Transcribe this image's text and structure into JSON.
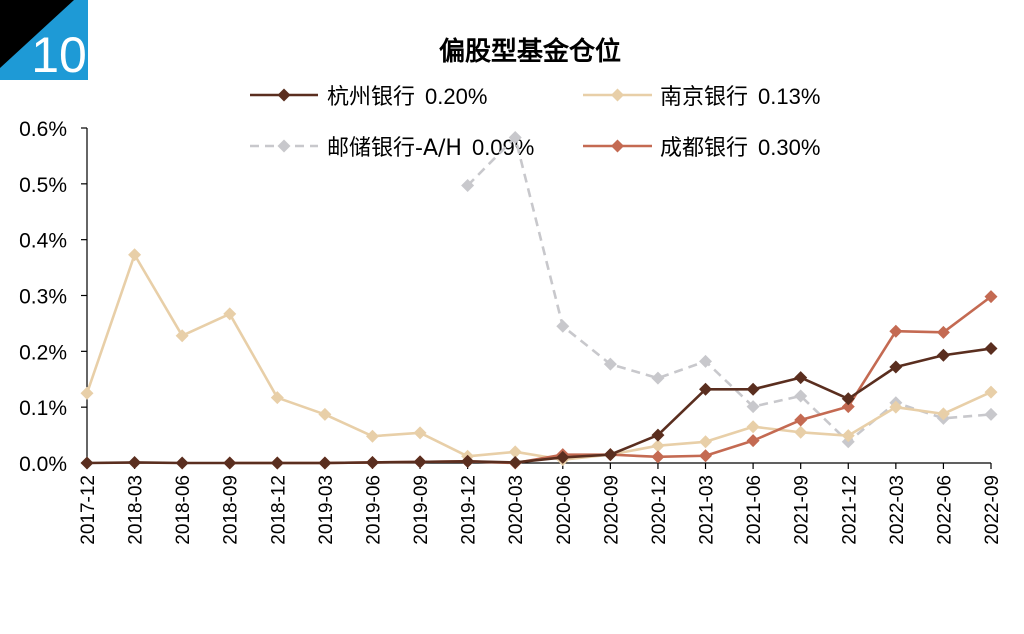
{
  "badge": {
    "number": "10"
  },
  "chart_data": {
    "type": "line",
    "title": "偏股型基金仓位",
    "xlabel": "",
    "ylabel": "",
    "categories": [
      "2017-12",
      "2018-03",
      "2018-06",
      "2018-09",
      "2018-12",
      "2019-03",
      "2019-06",
      "2019-09",
      "2019-12",
      "2020-03",
      "2020-06",
      "2020-09",
      "2020-12",
      "2021-03",
      "2021-06",
      "2021-09",
      "2021-12",
      "2022-03",
      "2022-06",
      "2022-09"
    ],
    "y_ticks": [
      "0.0%",
      "0.1%",
      "0.2%",
      "0.3%",
      "0.4%",
      "0.5%",
      "0.6%"
    ],
    "ylim": [
      0,
      0.6
    ],
    "grid": false,
    "legend_position": "top",
    "series": [
      {
        "name": "杭州银行",
        "legend_value": "0.20%",
        "color": "#5a2e1f",
        "dash": false,
        "values": [
          0.0,
          0.001,
          0.0,
          0.0,
          0.0,
          0.0,
          0.001,
          0.002,
          0.003,
          0.001,
          0.01,
          0.015,
          0.05,
          0.132,
          0.132,
          0.153,
          0.115,
          0.172,
          0.193,
          0.205
        ]
      },
      {
        "name": "南京银行",
        "legend_value": "0.13%",
        "color": "#e8cfa8",
        "dash": false,
        "values": [
          0.125,
          0.373,
          0.228,
          0.267,
          0.117,
          0.087,
          0.048,
          0.054,
          0.012,
          0.02,
          0.006,
          0.015,
          0.031,
          0.038,
          0.065,
          0.055,
          0.049,
          0.1,
          0.088,
          0.127
        ]
      },
      {
        "name": "邮储银行-A/H",
        "legend_value": "0.09%",
        "color": "#c8c8cc",
        "dash": true,
        "values": [
          null,
          null,
          null,
          null,
          null,
          null,
          null,
          null,
          0.497,
          0.583,
          0.245,
          0.177,
          0.152,
          0.182,
          0.101,
          0.12,
          0.038,
          0.108,
          0.08,
          0.087
        ]
      },
      {
        "name": "成都银行",
        "legend_value": "0.30%",
        "color": "#c46a52",
        "dash": false,
        "values": [
          null,
          null,
          null,
          0.0,
          0.0,
          0.0,
          0.001,
          0.002,
          0.003,
          0.0,
          0.015,
          0.015,
          0.011,
          0.013,
          0.04,
          0.077,
          0.101,
          0.236,
          0.234,
          0.298
        ]
      }
    ]
  }
}
